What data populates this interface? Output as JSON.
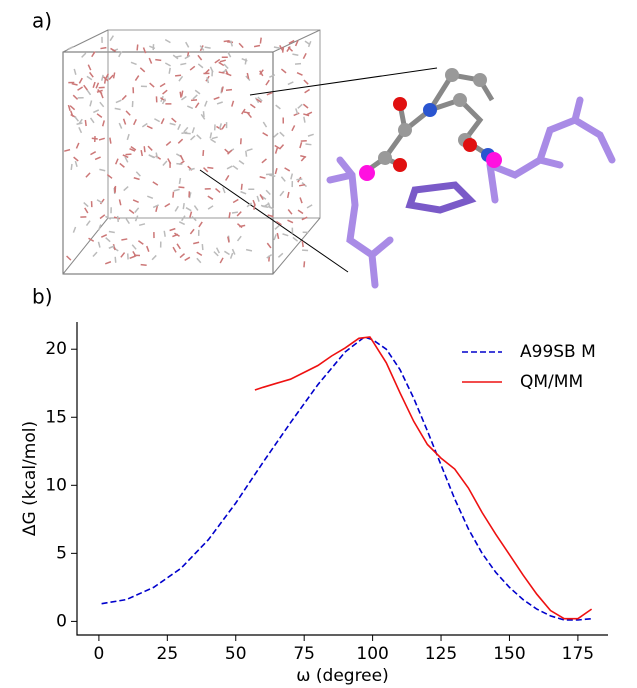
{
  "panel_a": {
    "label": "a)"
  },
  "chart_data": {
    "type": "line",
    "panel_label": "b)",
    "xlabel": "ω (degree)",
    "ylabel": "ΔG (kcal/mol)",
    "xlim": [
      -8,
      186
    ],
    "ylim": [
      -1,
      22
    ],
    "xticks": [
      0,
      25,
      50,
      75,
      100,
      125,
      150,
      175
    ],
    "yticks": [
      0,
      5,
      10,
      15,
      20
    ],
    "legend": "upper right",
    "series": [
      {
        "name": "A99SB M",
        "color": "#0000cc",
        "dash": true,
        "x": [
          1,
          10,
          20,
          30,
          40,
          50,
          60,
          70,
          80,
          90,
          97,
          100,
          105,
          110,
          115,
          120,
          125,
          130,
          135,
          140,
          145,
          150,
          155,
          160,
          165,
          170,
          175,
          180
        ],
        "values": [
          1.3,
          1.6,
          2.5,
          3.9,
          6.0,
          8.7,
          11.7,
          14.6,
          17.4,
          19.8,
          20.9,
          20.7,
          20.0,
          18.5,
          16.4,
          14.0,
          11.5,
          9.0,
          6.8,
          5.0,
          3.6,
          2.5,
          1.6,
          0.9,
          0.4,
          0.1,
          0.1,
          0.2
        ]
      },
      {
        "name": "QM/MM",
        "color": "#ee1111",
        "dash": false,
        "x": [
          57,
          60,
          65,
          70,
          75,
          80,
          85,
          90,
          95,
          99,
          100,
          105,
          110,
          115,
          120,
          125,
          130,
          135,
          140,
          145,
          150,
          155,
          160,
          165,
          170,
          175,
          180
        ],
        "values": [
          17.0,
          17.2,
          17.5,
          17.8,
          18.3,
          18.8,
          19.5,
          20.1,
          20.8,
          20.9,
          20.6,
          19.0,
          16.8,
          14.7,
          13.0,
          12.0,
          11.2,
          9.8,
          8.0,
          6.4,
          4.9,
          3.4,
          2.0,
          0.8,
          0.2,
          0.2,
          0.9
        ]
      }
    ]
  }
}
